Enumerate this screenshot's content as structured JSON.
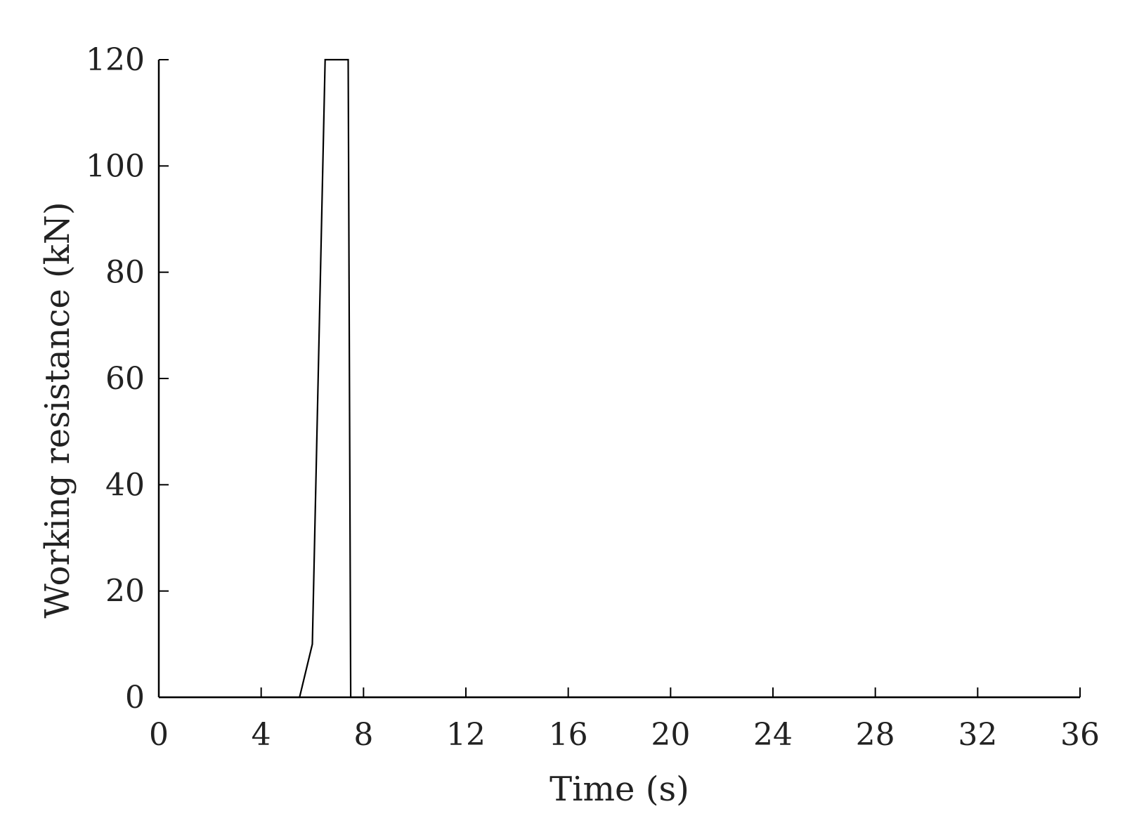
{
  "chart_data": {
    "type": "line",
    "title": "",
    "xlabel": "Time (s)",
    "ylabel": "Working resistance (kN)",
    "xlim": [
      0,
      36
    ],
    "ylim": [
      0,
      120
    ],
    "xticks": [
      0,
      4,
      8,
      12,
      16,
      20,
      24,
      28,
      32,
      36
    ],
    "yticks": [
      0,
      20,
      40,
      60,
      80,
      100,
      120
    ],
    "grid": false,
    "legend": "none",
    "line_color": "#000000",
    "series": [
      {
        "x": [
          0,
          5.5,
          6.0,
          6.5,
          7.4,
          7.5,
          36
        ],
        "y": [
          0,
          0,
          10,
          120,
          120,
          0,
          0
        ]
      }
    ]
  }
}
